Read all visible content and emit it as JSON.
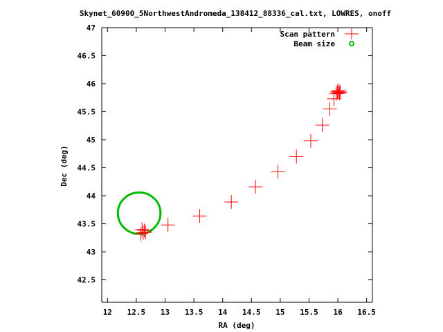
{
  "chart_data": {
    "type": "scatter",
    "title": "Skynet_60900_5NorthwestAndromeda_138412_88336_cal.txt, LOWRES, onoff",
    "xlabel": "RA (deg)",
    "ylabel": "Dec (deg)",
    "xlim": [
      11.9,
      16.6
    ],
    "ylim": [
      42.1,
      47.0
    ],
    "xticks": [
      "12",
      "12.5",
      "13",
      "13.5",
      "14",
      "14.5",
      "15",
      "15.5",
      "16",
      "16.5"
    ],
    "xtick_values": [
      12,
      12.5,
      13,
      13.5,
      14,
      14.5,
      15,
      15.5,
      16,
      16.5
    ],
    "yticks": [
      "42.5",
      "43",
      "43.5",
      "44",
      "44.5",
      "45",
      "45.5",
      "46",
      "46.5",
      "47"
    ],
    "ytick_values": [
      42.5,
      43,
      43.5,
      44,
      44.5,
      45,
      45.5,
      46,
      46.5,
      47
    ],
    "grid": false,
    "legend_position": "top-right",
    "series": [
      {
        "name": "Scan pattern",
        "marker": "plus",
        "color": "#ff0000",
        "points": [
          [
            12.58,
            43.32
          ],
          [
            12.6,
            43.4
          ],
          [
            12.62,
            43.34
          ],
          [
            12.64,
            43.38
          ],
          [
            12.66,
            43.35
          ],
          [
            13.05,
            43.48
          ],
          [
            13.6,
            43.64
          ],
          [
            14.15,
            43.89
          ],
          [
            14.57,
            44.16
          ],
          [
            14.96,
            44.43
          ],
          [
            15.28,
            44.7
          ],
          [
            15.53,
            44.98
          ],
          [
            15.73,
            45.26
          ],
          [
            15.86,
            45.55
          ],
          [
            15.93,
            45.73
          ],
          [
            15.97,
            45.82
          ],
          [
            15.99,
            45.86
          ],
          [
            16.0,
            45.84
          ],
          [
            16.02,
            45.88
          ],
          [
            16.03,
            45.83
          ],
          [
            16.04,
            45.85
          ]
        ]
      },
      {
        "name": "Beam size",
        "marker": "circle",
        "color": "#00bb00",
        "center": [
          12.55,
          43.69
        ],
        "radius_deg": 0.37
      }
    ]
  }
}
